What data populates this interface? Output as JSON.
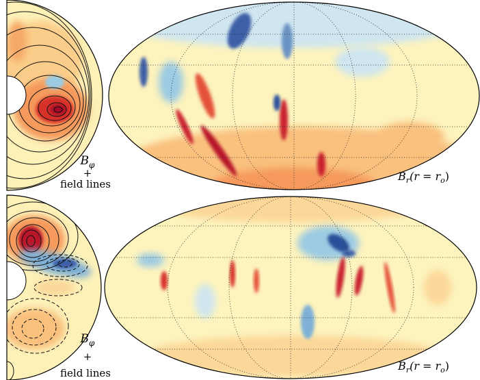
{
  "panels": [
    {
      "left_label": {
        "symbol": "B",
        "subscript": "φ",
        "plus": "+",
        "text": "field lines"
      },
      "right_label": {
        "symbol": "B",
        "subscript": "r",
        "argument": "(r = r",
        "argument_subscript": "o",
        "closing": ")"
      }
    },
    {
      "left_label": {
        "symbol": "B",
        "subscript": "φ",
        "plus": "+",
        "text": "field lines"
      },
      "right_label": {
        "symbol": "B",
        "subscript": "r",
        "argument": "(r = r",
        "argument_subscript": "o",
        "closing": ")"
      }
    }
  ]
}
